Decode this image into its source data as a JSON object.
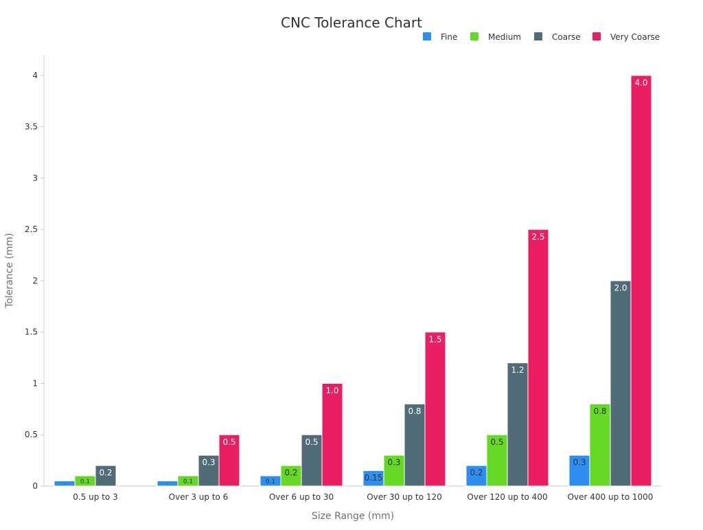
{
  "chart_data": {
    "type": "bar",
    "title": "CNC Tolerance Chart",
    "xlabel": "Size Range (mm)",
    "ylabel": "Tolerance (mm)",
    "categories": [
      "0.5 up to 3",
      "Over 3 up to 6",
      "Over 6 up to 30",
      "Over 30 up to 120",
      "Over 120 up to 400",
      "Over 400 up to 1000"
    ],
    "series": [
      {
        "name": "Fine",
        "color": "#2e8ff0",
        "values": [
          0.05,
          0.05,
          0.1,
          0.15,
          0.2,
          0.3
        ],
        "labels": [
          "-",
          "-",
          "0.1",
          "0.15",
          "0.2",
          "0.3"
        ]
      },
      {
        "name": "Medium",
        "color": "#66d926",
        "values": [
          0.1,
          0.1,
          0.2,
          0.3,
          0.5,
          0.8
        ],
        "labels": [
          "0.1",
          "0.1",
          "0.2",
          "0.3",
          "0.5",
          "0.8"
        ]
      },
      {
        "name": "Coarse",
        "color": "#516b77",
        "values": [
          0.2,
          0.3,
          0.5,
          0.8,
          1.2,
          2.0
        ],
        "labels": [
          "0.2",
          "0.3",
          "0.5",
          "0.8",
          "1.2",
          "2.0"
        ]
      },
      {
        "name": "Very Coarse",
        "color": "#e91e63",
        "values": [
          null,
          0.5,
          1.0,
          1.5,
          2.5,
          4.0
        ],
        "labels": [
          "",
          "0.5",
          "1.0",
          "1.5",
          "2.5",
          "4.0"
        ]
      }
    ],
    "ylim": [
      0,
      4.2
    ],
    "yticks": [
      "0",
      "0.5",
      "1",
      "1.5",
      "2",
      "2.5",
      "3",
      "3.5",
      "4"
    ],
    "grid": false,
    "legend_position": "top-right"
  }
}
